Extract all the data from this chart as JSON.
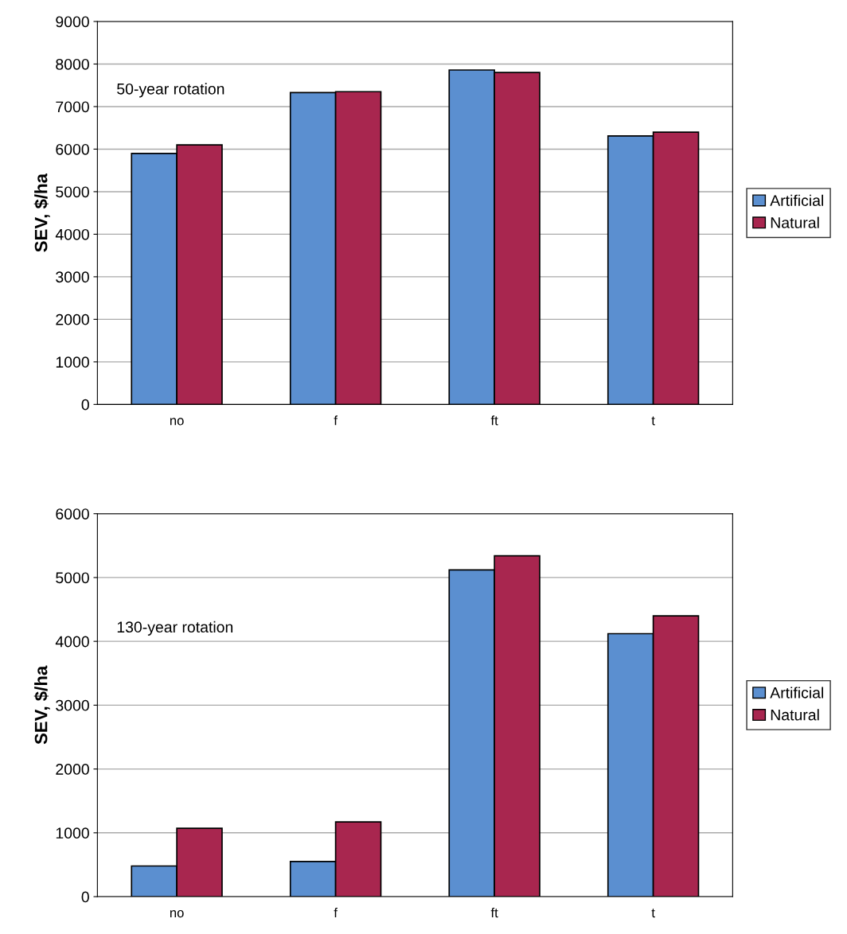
{
  "chart_data": [
    {
      "type": "bar",
      "categories": [
        "no",
        "f",
        "ft",
        "t"
      ],
      "ylabel": "SEV, $/ha",
      "annotations": [
        "50-year rotation"
      ],
      "ylim": [
        0,
        9000
      ],
      "yticks": [
        0,
        1000,
        2000,
        3000,
        4000,
        5000,
        6000,
        7000,
        8000,
        9000
      ],
      "grid": "y",
      "legend": "right",
      "series": [
        {
          "name": "Artificial",
          "color": "#5b8fd0",
          "values": [
            5900,
            7330,
            7860,
            6310
          ]
        },
        {
          "name": "Natural",
          "color": "#a8264f",
          "values": [
            6100,
            7350,
            7800,
            6400
          ]
        }
      ]
    },
    {
      "type": "bar",
      "categories": [
        "no",
        "f",
        "ft",
        "t"
      ],
      "ylabel": "SEV, $/ha",
      "annotations": [
        "130-year rotation"
      ],
      "ylim": [
        0,
        6000
      ],
      "yticks": [
        0,
        1000,
        2000,
        3000,
        4000,
        5000,
        6000
      ],
      "grid": "y",
      "legend": "right",
      "series": [
        {
          "name": "Artificial",
          "color": "#5b8fd0",
          "values": [
            480,
            550,
            5120,
            4120
          ]
        },
        {
          "name": "Natural",
          "color": "#a8264f",
          "values": [
            1070,
            1170,
            5340,
            4400
          ]
        }
      ]
    }
  ]
}
